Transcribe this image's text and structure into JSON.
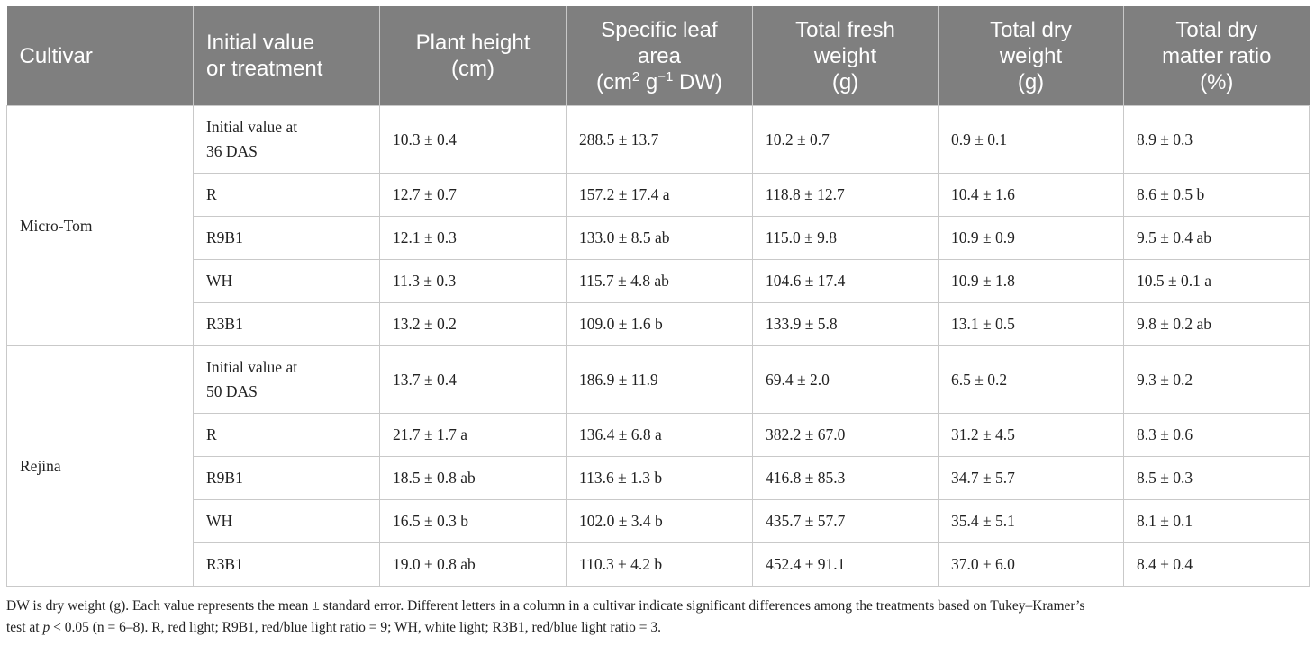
{
  "header": {
    "cultivar": "Cultivar",
    "treatment": [
      "Initial value",
      "or treatment"
    ],
    "plant_height": [
      "Plant height",
      "(cm)"
    ],
    "sla": {
      "line1": "Specific leaf",
      "line2": "area",
      "line3_pre": "(cm",
      "sup1": "2",
      "mid": " g",
      "sup2": "−1",
      "post": " DW)"
    },
    "fresh_weight": [
      "Total fresh",
      "weight",
      "(g)"
    ],
    "dry_weight": [
      "Total dry",
      "weight",
      "(g)"
    ],
    "dry_matter": [
      "Total dry",
      "matter ratio",
      "(%)"
    ]
  },
  "groups": [
    {
      "cultivar": "Micro-Tom",
      "rows": [
        {
          "treatment": [
            "Initial value at",
            "36 DAS"
          ],
          "height": "10.3 ± 0.4",
          "sla": "288.5 ± 13.7",
          "fresh": "10.2 ± 0.7",
          "dry": "0.9 ± 0.1",
          "ratio": "8.9 ± 0.3"
        },
        {
          "treatment": [
            "R"
          ],
          "height": "12.7 ± 0.7",
          "sla": "157.2 ± 17.4 a",
          "fresh": "118.8 ± 12.7",
          "dry": "10.4 ± 1.6",
          "ratio": "8.6 ± 0.5 b"
        },
        {
          "treatment": [
            "R9B1"
          ],
          "height": "12.1 ± 0.3",
          "sla": "133.0 ± 8.5 ab",
          "fresh": "115.0 ± 9.8",
          "dry": "10.9 ± 0.9",
          "ratio": "9.5 ± 0.4 ab"
        },
        {
          "treatment": [
            "WH"
          ],
          "height": "11.3 ± 0.3",
          "sla": "115.7 ± 4.8 ab",
          "fresh": "104.6 ± 17.4",
          "dry": "10.9 ± 1.8",
          "ratio": "10.5 ± 0.1 a"
        },
        {
          "treatment": [
            "R3B1"
          ],
          "height": "13.2 ± 0.2",
          "sla": "109.0 ± 1.6 b",
          "fresh": "133.9 ± 5.8",
          "dry": "13.1 ± 0.5",
          "ratio": "9.8 ± 0.2 ab"
        }
      ]
    },
    {
      "cultivar": "Rejina",
      "rows": [
        {
          "treatment": [
            "Initial value at",
            "50 DAS"
          ],
          "height": "13.7 ± 0.4",
          "sla": "186.9 ± 11.9",
          "fresh": "69.4 ± 2.0",
          "dry": "6.5 ± 0.2",
          "ratio": "9.3 ± 0.2"
        },
        {
          "treatment": [
            "R"
          ],
          "height": "21.7 ± 1.7 a",
          "sla": "136.4 ± 6.8 a",
          "fresh": "382.2 ± 67.0",
          "dry": "31.2 ± 4.5",
          "ratio": "8.3 ± 0.6"
        },
        {
          "treatment": [
            "R9B1"
          ],
          "height": "18.5 ± 0.8 ab",
          "sla": "113.6 ± 1.3 b",
          "fresh": "416.8 ± 85.3",
          "dry": "34.7 ± 5.7",
          "ratio": "8.5 ± 0.3"
        },
        {
          "treatment": [
            "WH"
          ],
          "height": "16.5 ± 0.3 b",
          "sla": "102.0 ± 3.4 b",
          "fresh": "435.7 ± 57.7",
          "dry": "35.4 ± 5.1",
          "ratio": "8.1 ± 0.1"
        },
        {
          "treatment": [
            "R3B1"
          ],
          "height": "19.0 ± 0.8 ab",
          "sla": "110.3 ± 4.2 b",
          "fresh": "452.4 ± 91.1",
          "dry": "37.0 ± 6.0",
          "ratio": "8.4 ± 0.4"
        }
      ]
    }
  ],
  "footnote": {
    "line1": "DW is dry weight (g). Each value represents the mean ± standard error. Different letters in a column in a cultivar indicate significant differences among the treatments based on Tukey–Kramer’s",
    "line2_pre": "test at ",
    "line2_italic": "p",
    "line2_post": " < 0.05 (n = 6–8). R, red light; R9B1, red/blue light ratio = 9; WH, white light; R3B1, red/blue light ratio = 3."
  }
}
